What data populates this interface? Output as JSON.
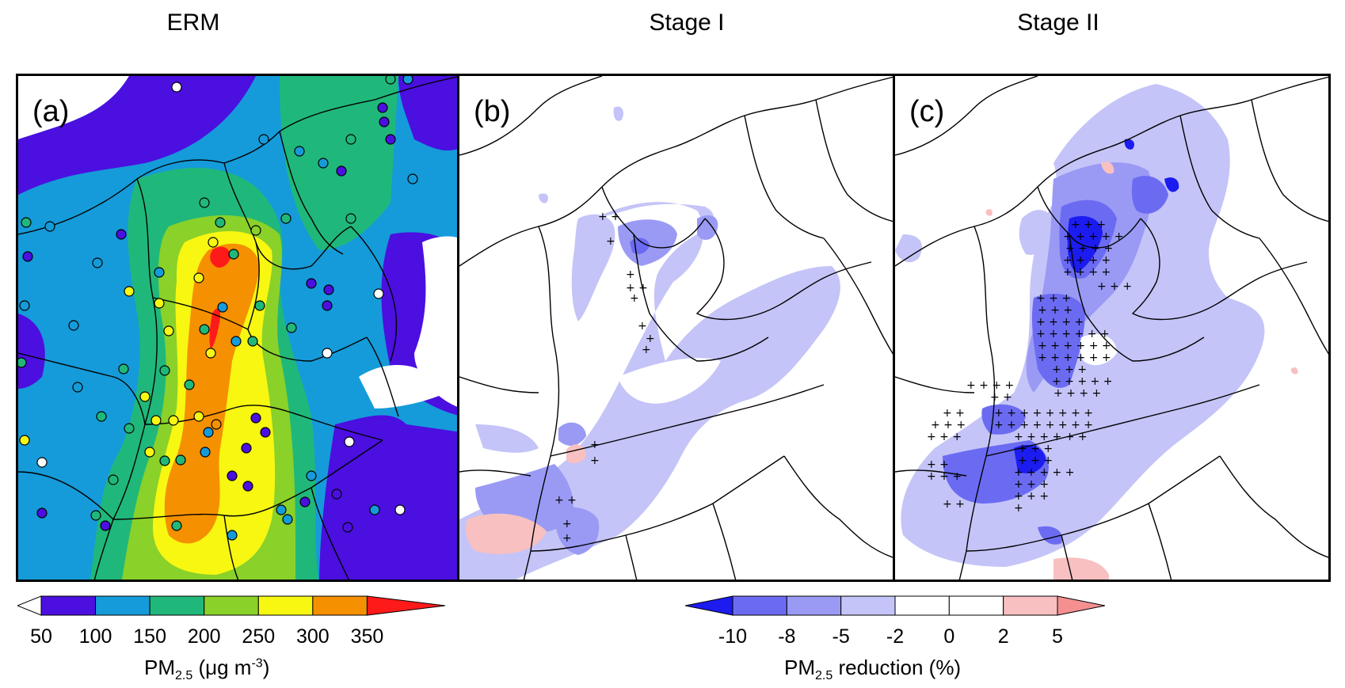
{
  "titles": {
    "a": "ERM",
    "b": "Stage I",
    "c": "Stage II"
  },
  "panel_labels": {
    "a": "(a)",
    "b": "(b)",
    "c": "(c)"
  },
  "colorbar_left": {
    "ticks": [
      "50",
      "100",
      "150",
      "200",
      "250",
      "300",
      "350"
    ],
    "colors": [
      "#4b0fe0",
      "#159bd9",
      "#20b87a",
      "#8ad12a",
      "#f7f712",
      "#f59000",
      "#ff1a1a"
    ],
    "label_main": "PM",
    "label_sub": "2.5",
    "label_rest": " (μg m",
    "label_sup": "-3",
    "label_end": ")"
  },
  "colorbar_right": {
    "ticks": [
      "-10",
      "-8",
      "-5",
      "-2",
      "0",
      "2",
      "5"
    ],
    "colors": [
      "#1c1cf0",
      "#6b6bf2",
      "#9a9af5",
      "#c4c4f8",
      "#ffffff",
      "#ffffff",
      "#f8c0c0",
      "#f49090"
    ],
    "label_main": "PM",
    "label_sub": "2.5",
    "label_rest": " reduction (%)"
  },
  "colors": {
    "erm_base": "#159bd9",
    "erm_low": "#4b0fe0",
    "erm_green": "#20b87a",
    "erm_yg": "#8ad12a",
    "erm_yellow": "#f7f712",
    "erm_orange": "#f59000",
    "erm_red": "#ff1a1a",
    "red_light": "#f8c0c0",
    "blue_light": "#c4c4f8",
    "blue_mid": "#9a9af5",
    "blue_dark": "#6b6bf2",
    "blue_deep": "#1c1cf0"
  }
}
